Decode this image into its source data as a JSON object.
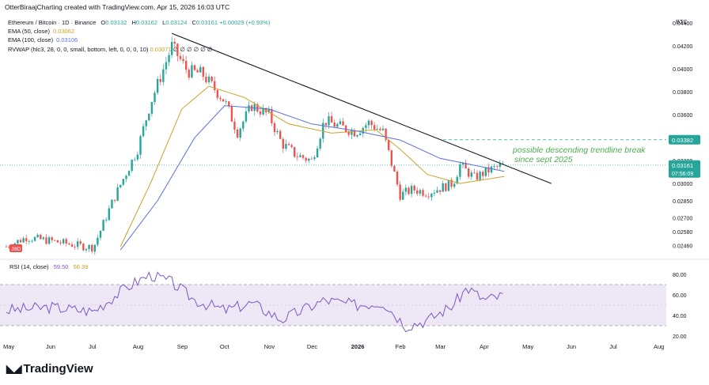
{
  "header": {
    "created_by": "OtterBiraajCharting created with TradingView.com, Apr 15, 2026 16:03 UTC"
  },
  "legend": {
    "symbol": "Ethereum / Bitcoin · 1D · Binance",
    "ohlc": {
      "o_label": "O",
      "o": "0.03132",
      "h_label": "H",
      "h": "0.03162",
      "l_label": "L",
      "l": "0.03124",
      "c_label": "C",
      "c": "0.03161",
      "change": "+0.00029 (+0.93%)"
    },
    "ema50": {
      "label": "EMA (50, close)",
      "value": "0.03062"
    },
    "ema100": {
      "label": "EMA (100, close)",
      "value": "0.03106"
    },
    "rvwap": {
      "label": "RVWAP (hlc3, 28, 0, 0, small, bottom, left, 0, 0, 0, 10)",
      "value": "0.03071",
      "trail": "∅ ∅ ∅ ∅ ∅ ∅"
    },
    "rsi": {
      "label": "RSI (14, close)",
      "value": "59.50",
      "ma": "56.39"
    }
  },
  "currency": "BTC",
  "marker_280": "28D",
  "annotation": {
    "line1": "possible descending trendline break",
    "line2": "since sept 2025"
  },
  "price_tags": {
    "resistance": "0.03382",
    "last": "0.03161",
    "countdown": "07:56:09"
  },
  "brand": "TradingView",
  "colors": {
    "up": "#26a69a",
    "down": "#ef5350",
    "ema50": "#c9a227",
    "ema100": "#5b6ee1",
    "rsi": "#7e57c2",
    "rsi_band": "#ede7f6",
    "trend": "#131722",
    "annotation": "#4caf50"
  },
  "chart_data": [
    {
      "type": "candlestick",
      "title": "Ethereum / Bitcoin · 1D · Binance",
      "ylim": [
        0.0238,
        0.0445
      ],
      "y_ticks": [
        "0.04400",
        "0.04200",
        "0.04000",
        "0.03800",
        "0.03600",
        "0.03400",
        "0.03200",
        "0.03000",
        "0.02850",
        "0.02700",
        "0.02580",
        "0.02460"
      ],
      "x_ticks": [
        "May",
        "Jun",
        "Jul",
        "Aug",
        "Sep",
        "Oct",
        "Nov",
        "Dec",
        "2026",
        "Feb",
        "Mar",
        "Apr",
        "May",
        "Jun",
        "Jul",
        "Aug"
      ],
      "close_path": [
        [
          "2025-05-01",
          0.0245
        ],
        [
          "2025-05-15",
          0.0253
        ],
        [
          "2025-06-01",
          0.025
        ],
        [
          "2025-06-15",
          0.0247
        ],
        [
          "2025-07-01",
          0.0244
        ],
        [
          "2025-07-15",
          0.0286
        ],
        [
          "2025-08-01",
          0.033
        ],
        [
          "2025-08-10",
          0.037
        ],
        [
          "2025-08-20",
          0.0403
        ],
        [
          "2025-08-25",
          0.042
        ],
        [
          "2025-09-05",
          0.0398
        ],
        [
          "2025-09-15",
          0.0396
        ],
        [
          "2025-10-01",
          0.0372
        ],
        [
          "2025-10-10",
          0.0345
        ],
        [
          "2025-10-20",
          0.0368
        ],
        [
          "2025-11-01",
          0.036
        ],
        [
          "2025-11-10",
          0.0335
        ],
        [
          "2025-11-20",
          0.0325
        ],
        [
          "2025-12-01",
          0.032
        ],
        [
          "2025-12-10",
          0.0355
        ],
        [
          "2025-12-20",
          0.035
        ],
        [
          "2026-01-01",
          0.0345
        ],
        [
          "2026-01-10",
          0.0353
        ],
        [
          "2026-01-20",
          0.0345
        ],
        [
          "2026-02-01",
          0.029
        ],
        [
          "2026-02-10",
          0.0295
        ],
        [
          "2026-02-20",
          0.0292
        ],
        [
          "2026-03-01",
          0.0296
        ],
        [
          "2026-03-10",
          0.03
        ],
        [
          "2026-03-15",
          0.0316
        ],
        [
          "2026-03-25",
          0.0305
        ],
        [
          "2026-04-05",
          0.0312
        ],
        [
          "2026-04-15",
          0.03161
        ]
      ],
      "ema50_path": [
        [
          "2025-07-20",
          0.0245
        ],
        [
          "2025-08-10",
          0.03
        ],
        [
          "2025-09-01",
          0.0365
        ],
        [
          "2025-09-20",
          0.0385
        ],
        [
          "2025-10-15",
          0.0375
        ],
        [
          "2025-11-15",
          0.0352
        ],
        [
          "2025-12-15",
          0.0344
        ],
        [
          "2026-01-15",
          0.0347
        ],
        [
          "2026-02-01",
          0.033
        ],
        [
          "2026-02-20",
          0.0308
        ],
        [
          "2026-03-15",
          0.03
        ],
        [
          "2026-04-15",
          0.03062
        ]
      ],
      "ema100_path": [
        [
          "2025-07-20",
          0.0242
        ],
        [
          "2025-08-15",
          0.0285
        ],
        [
          "2025-09-10",
          0.034
        ],
        [
          "2025-10-01",
          0.0368
        ],
        [
          "2025-11-01",
          0.0365
        ],
        [
          "2025-12-01",
          0.0352
        ],
        [
          "2026-01-01",
          0.0346
        ],
        [
          "2026-02-01",
          0.0338
        ],
        [
          "2026-03-01",
          0.0322
        ],
        [
          "2026-04-15",
          0.03106
        ]
      ],
      "trendline": [
        [
          "2025-08-25",
          0.0431
        ],
        [
          "2026-05-18",
          0.03
        ]
      ],
      "resistance": 0.03382,
      "last": 0.03161
    },
    {
      "type": "line",
      "title": "RSI (14, close)",
      "ylim": [
        20,
        85
      ],
      "y_ticks": [
        "80.00",
        "60.00",
        "40.00",
        "20.00"
      ],
      "band": [
        30,
        70
      ],
      "values_path": [
        [
          "2025-05-01",
          45
        ],
        [
          "2025-06-01",
          48
        ],
        [
          "2025-07-01",
          44
        ],
        [
          "2025-07-25",
          68
        ],
        [
          "2025-08-10",
          80
        ],
        [
          "2025-08-25",
          72
        ],
        [
          "2025-09-10",
          55
        ],
        [
          "2025-10-01",
          45
        ],
        [
          "2025-10-20",
          52
        ],
        [
          "2025-11-10",
          36
        ],
        [
          "2025-12-10",
          55
        ],
        [
          "2026-01-01",
          50
        ],
        [
          "2026-01-20",
          53
        ],
        [
          "2026-02-05",
          30
        ],
        [
          "2026-02-20",
          35
        ],
        [
          "2026-03-10",
          50
        ],
        [
          "2026-03-20",
          67
        ],
        [
          "2026-04-01",
          55
        ],
        [
          "2026-04-15",
          59.5
        ]
      ]
    }
  ]
}
